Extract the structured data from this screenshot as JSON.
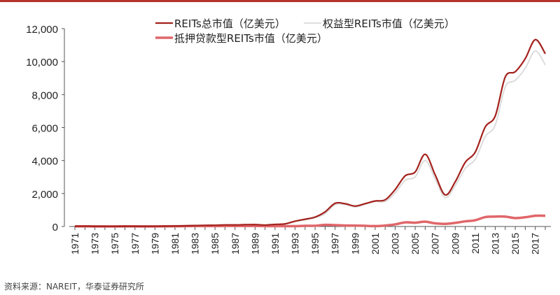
{
  "chart_data": {
    "type": "line",
    "x": [
      1971,
      1972,
      1973,
      1974,
      1975,
      1976,
      1977,
      1978,
      1979,
      1980,
      1981,
      1982,
      1983,
      1984,
      1985,
      1986,
      1987,
      1988,
      1989,
      1990,
      1991,
      1992,
      1993,
      1994,
      1995,
      1996,
      1997,
      1998,
      1999,
      2000,
      2001,
      2002,
      2003,
      2004,
      2005,
      2006,
      2007,
      2008,
      2009,
      2010,
      2011,
      2012,
      2013,
      2014,
      2015,
      2016,
      2017,
      2018
    ],
    "xtick_labels": [
      "1971",
      "1973",
      "1975",
      "1977",
      "1979",
      "1981",
      "1983",
      "1985",
      "1987",
      "1989",
      "1991",
      "1993",
      "1995",
      "1997",
      "1999",
      "2001",
      "2003",
      "2005",
      "2007",
      "2009",
      "2011",
      "2013",
      "2015",
      "2017"
    ],
    "ylim": [
      0,
      12000
    ],
    "yticks": [
      "0",
      "2,000",
      "4,000",
      "6,000",
      "8,000",
      "10,000",
      "12,000"
    ],
    "legend_placement": "top-left",
    "series": [
      {
        "name": "REITs总市值（亿美元）",
        "color": "#a3211c",
        "values": [
          15,
          19,
          10,
          7,
          9,
          12,
          12,
          11,
          13,
          22,
          27,
          43,
          59,
          72,
          76,
          98,
          96,
          111,
          117,
          87,
          130,
          159,
          321,
          442,
          573,
          889,
          1408,
          1383,
          1240,
          1386,
          1547,
          1619,
          2240,
          3074,
          3309,
          4381,
          3127,
          1917,
          2711,
          3891,
          4509,
          6038,
          6708,
          9072,
          9388,
          10186,
          11335,
          10479
        ]
      },
      {
        "name": "权益型REITs市值（亿美元）",
        "color": "#d9d9d9",
        "values": [
          3,
          3,
          2,
          1,
          1,
          2,
          2,
          2,
          4,
          9,
          10,
          18,
          30,
          41,
          48,
          64,
          60,
          75,
          80,
          56,
          109,
          139,
          301,
          400,
          528,
          781,
          1322,
          1320,
          1184,
          1343,
          1520,
          1512,
          2040,
          2800,
          3012,
          4000,
          2880,
          1760,
          2480,
          3520,
          4080,
          5450,
          6150,
          8470,
          8870,
          9600,
          10650,
          9800
        ]
      },
      {
        "name": "抵押贷款型REITs市值（亿美元）",
        "color": "#e0666a",
        "values": [
          10,
          12,
          6,
          4,
          6,
          8,
          8,
          7,
          7,
          10,
          14,
          20,
          24,
          26,
          25,
          30,
          30,
          30,
          30,
          25,
          20,
          20,
          20,
          40,
          45,
          100,
          85,
          60,
          55,
          40,
          25,
          60,
          130,
          250,
          230,
          290,
          190,
          160,
          220,
          310,
          380,
          570,
          600,
          600,
          510,
          560,
          650,
          650
        ]
      }
    ]
  },
  "source": "资料来源：NAREIT，华泰证券研究所"
}
